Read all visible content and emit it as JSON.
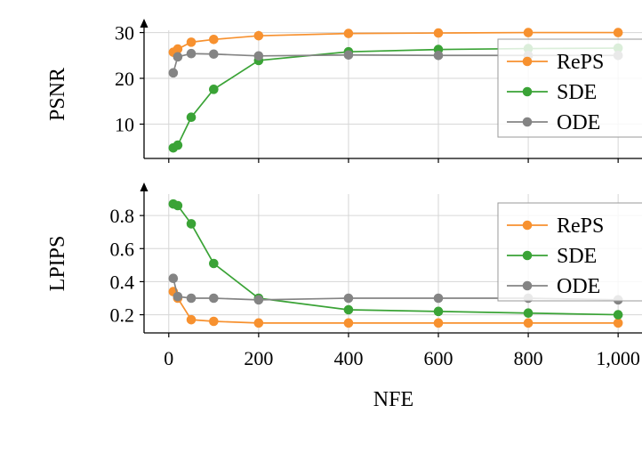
{
  "style": {
    "background": "#ffffff",
    "grid_color": "#d6d6d6",
    "axis_color": "#000000",
    "legend_border": "#9a9a9a",
    "legend_fill": "#ffffff",
    "legend_fill_opacity": 0.82,
    "series_colors": {
      "RePS": "#f7912f",
      "SDE": "#3aa336",
      "ODE": "#848484"
    }
  },
  "chart_data": [
    {
      "type": "line",
      "title": "",
      "xlabel": "",
      "ylabel": "PSNR",
      "grid": true,
      "legend_position": "upper right",
      "legend": [
        "RePS",
        "SDE",
        "ODE"
      ],
      "xlim": [
        -55,
        1065
      ],
      "ylim": [
        2.5,
        30.5
      ],
      "xticks": [
        0,
        200,
        400,
        600,
        800,
        1000
      ],
      "xtick_labels": [
        "",
        "",
        "",
        "",
        "",
        ""
      ],
      "yticks": [
        10,
        20,
        30
      ],
      "ytick_labels": [
        "10",
        "20",
        "30"
      ],
      "x": [
        10,
        20,
        50,
        100,
        200,
        400,
        600,
        800,
        1000
      ],
      "series": [
        {
          "name": "RePS",
          "color": "#f7912f",
          "values": [
            25.7,
            26.4,
            27.9,
            28.5,
            29.3,
            29.8,
            29.9,
            30.0,
            30.0
          ]
        },
        {
          "name": "SDE",
          "color": "#3aa336",
          "values": [
            4.8,
            5.4,
            11.5,
            17.6,
            23.9,
            25.8,
            26.3,
            26.5,
            26.6
          ]
        },
        {
          "name": "ODE",
          "color": "#848484",
          "values": [
            21.2,
            24.7,
            25.4,
            25.3,
            24.9,
            25.1,
            25.0,
            25.0,
            25.0
          ]
        }
      ]
    },
    {
      "type": "line",
      "title": "",
      "xlabel": "NFE",
      "ylabel": "LPIPS",
      "grid": true,
      "legend_position": "right",
      "legend": [
        "RePS",
        "SDE",
        "ODE"
      ],
      "xlim": [
        -55,
        1065
      ],
      "ylim": [
        0.09,
        0.93
      ],
      "xticks": [
        0,
        200,
        400,
        600,
        800,
        1000
      ],
      "xtick_labels": [
        "0",
        "200",
        "400",
        "600",
        "800",
        "1,000"
      ],
      "yticks": [
        0.2,
        0.4,
        0.6,
        0.8
      ],
      "ytick_labels": [
        "0.2",
        "0.4",
        "0.6",
        "0.8"
      ],
      "x": [
        10,
        20,
        50,
        100,
        200,
        400,
        600,
        800,
        1000
      ],
      "series": [
        {
          "name": "RePS",
          "color": "#f7912f",
          "values": [
            0.34,
            0.3,
            0.17,
            0.16,
            0.15,
            0.15,
            0.15,
            0.15,
            0.15
          ]
        },
        {
          "name": "SDE",
          "color": "#3aa336",
          "values": [
            0.87,
            0.86,
            0.75,
            0.51,
            0.3,
            0.23,
            0.22,
            0.21,
            0.2
          ]
        },
        {
          "name": "ODE",
          "color": "#848484",
          "values": [
            0.42,
            0.31,
            0.3,
            0.3,
            0.29,
            0.3,
            0.3,
            0.3,
            0.29
          ]
        }
      ]
    }
  ]
}
